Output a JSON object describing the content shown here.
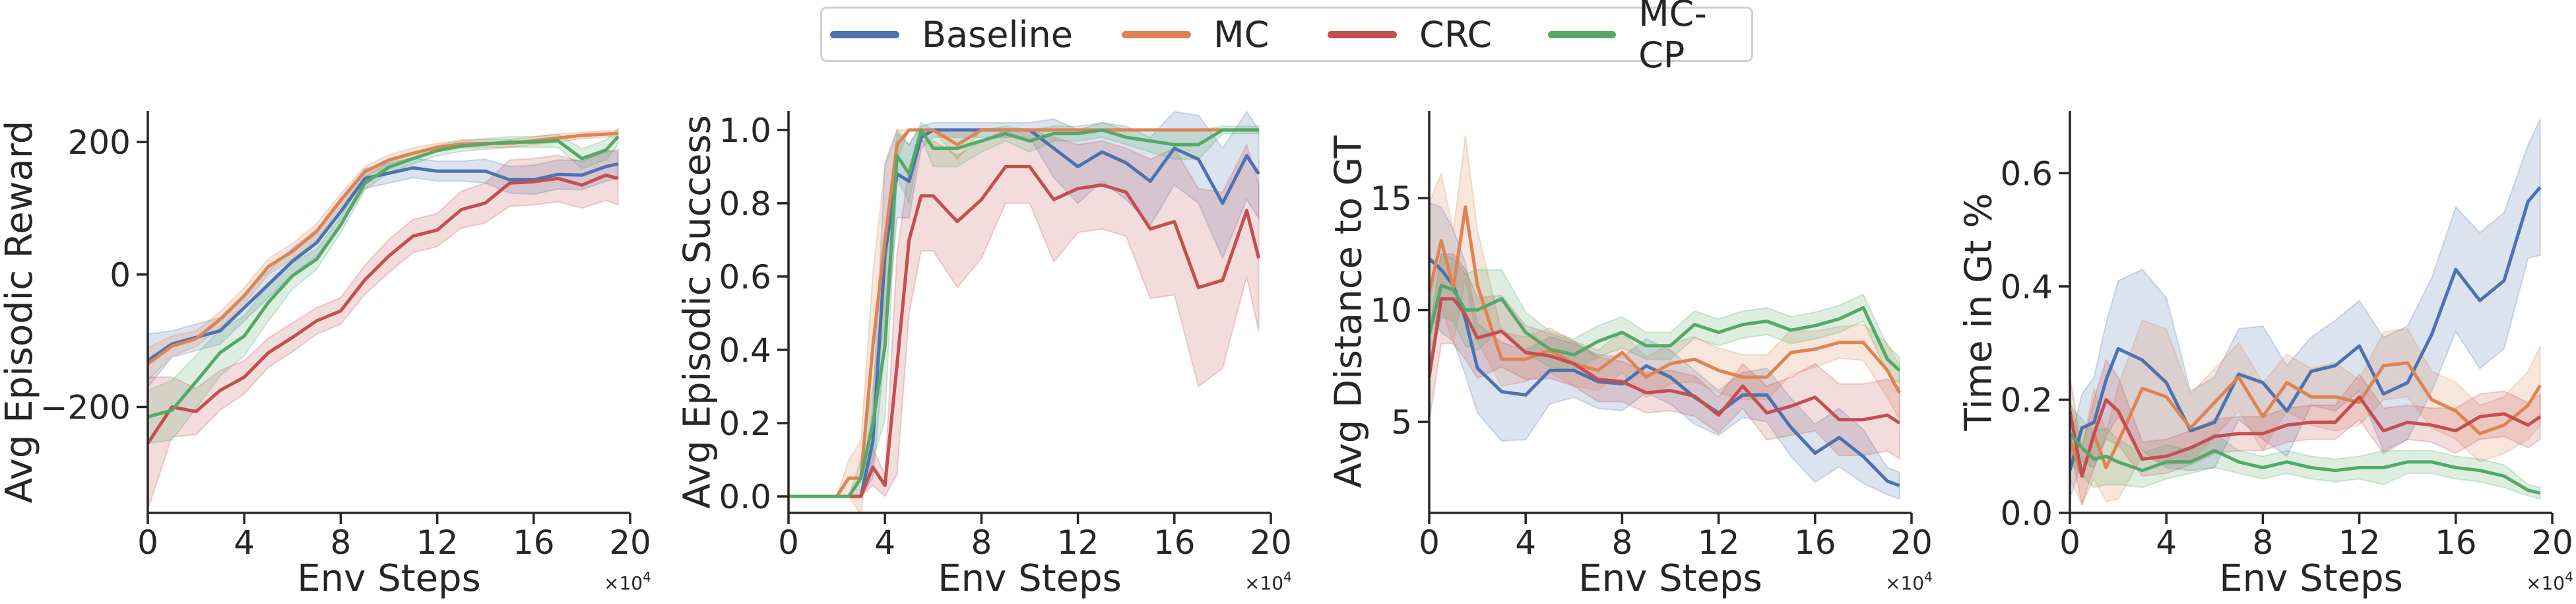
{
  "legend": {
    "placement": "top-center",
    "entries": [
      {
        "name": "Baseline",
        "color": "#4c72b0"
      },
      {
        "name": "MC",
        "color": "#dd8452"
      },
      {
        "name": "CRC",
        "color": "#c44e52"
      },
      {
        "name": "MC-CP",
        "color": "#55a868"
      }
    ]
  },
  "chart_data": [
    {
      "type": "line",
      "xlabel": "Env Steps",
      "ylabel": "Avg Episodic Reward",
      "x_multiplier": "×10",
      "x_multiplier_exp": "4",
      "xlim": [
        0,
        20
      ],
      "ylim": [
        -360,
        247
      ],
      "xticks": [
        0,
        4,
        8,
        12,
        16,
        20
      ],
      "xtick_labels": [
        "0",
        "4",
        "8",
        "12",
        "16",
        "20"
      ],
      "yticks": [
        -200,
        0,
        200
      ],
      "ytick_labels": [
        "−200",
        "0",
        "200"
      ],
      "grid": false,
      "x": [
        0,
        1,
        2,
        3,
        4,
        5,
        6,
        7,
        8,
        9,
        10,
        11,
        12,
        13,
        14,
        15,
        16,
        17,
        18,
        19,
        19.5
      ],
      "series": [
        {
          "name": "Baseline",
          "values": [
            -130,
            -105,
            -95,
            -85,
            -50,
            -15,
            20,
            48,
            95,
            145,
            153,
            161,
            156,
            156,
            156,
            143,
            143,
            151,
            150,
            163,
            167
          ],
          "ci": [
            40,
            20,
            20,
            20,
            20,
            20,
            20,
            20,
            20,
            15,
            15,
            15,
            15,
            15,
            18,
            20,
            22,
            22,
            22,
            22,
            22
          ]
        },
        {
          "name": "MC",
          "values": [
            -135,
            -108,
            -97,
            -68,
            -32,
            12,
            35,
            65,
            112,
            155,
            173,
            183,
            192,
            197,
            198,
            198,
            202,
            206,
            210,
            212,
            213
          ],
          "ci": [
            25,
            15,
            12,
            12,
            12,
            12,
            12,
            12,
            10,
            8,
            8,
            8,
            6,
            6,
            6,
            6,
            6,
            6,
            5,
            5,
            5
          ]
        },
        {
          "name": "CRC",
          "values": [
            -255,
            -200,
            -207,
            -175,
            -155,
            -118,
            -95,
            -70,
            -55,
            -8,
            28,
            58,
            67,
            98,
            108,
            138,
            140,
            145,
            135,
            150,
            145
          ],
          "ci": [
            100,
            45,
            35,
            30,
            25,
            22,
            22,
            20,
            20,
            22,
            25,
            25,
            25,
            28,
            30,
            35,
            35,
            35,
            35,
            38,
            40
          ]
        },
        {
          "name": "MC-CP",
          "values": [
            -215,
            -205,
            -162,
            -118,
            -93,
            -42,
            -2,
            23,
            75,
            138,
            162,
            175,
            187,
            194,
            197,
            200,
            200,
            202,
            175,
            188,
            208
          ],
          "ci": [
            40,
            45,
            40,
            35,
            30,
            28,
            20,
            15,
            12,
            10,
            8,
            8,
            8,
            8,
            8,
            8,
            8,
            10,
            15,
            15,
            12
          ]
        }
      ]
    },
    {
      "type": "line",
      "xlabel": "Env Steps",
      "ylabel": "Avg Episodic Success",
      "x_multiplier": "×10",
      "x_multiplier_exp": "4",
      "xlim": [
        0,
        20
      ],
      "ylim": [
        -0.045,
        1.052
      ],
      "xticks": [
        0,
        4,
        8,
        12,
        16,
        20
      ],
      "xtick_labels": [
        "0",
        "4",
        "8",
        "12",
        "16",
        "20"
      ],
      "yticks": [
        0,
        0.2,
        0.4,
        0.6,
        0.8,
        1.0
      ],
      "ytick_labels": [
        "0.0",
        "0.2",
        "0.4",
        "0.6",
        "0.8",
        "1.0"
      ],
      "grid": false,
      "x": [
        0,
        1,
        2,
        2.5,
        3,
        3.5,
        4,
        4.5,
        5,
        5.5,
        6,
        7,
        8,
        9,
        10,
        11,
        12,
        13,
        14,
        15,
        16,
        17,
        18,
        19,
        19.5
      ],
      "series": [
        {
          "name": "Baseline",
          "values": [
            0,
            0,
            0,
            0,
            0,
            0.15,
            0.66,
            0.88,
            0.86,
            0.98,
            1,
            1,
            1,
            1,
            1,
            0.95,
            0.9,
            0.94,
            0.91,
            0.86,
            0.95,
            0.92,
            0.8,
            0.93,
            0.88
          ],
          "ci": [
            0,
            0,
            0,
            0,
            0,
            0.1,
            0.25,
            0.12,
            0.1,
            0.03,
            0.02,
            0.02,
            0.02,
            0.02,
            0.02,
            0.08,
            0.1,
            0.08,
            0.1,
            0.12,
            0.1,
            0.12,
            0.15,
            0.12,
            0.12
          ]
        },
        {
          "name": "MC",
          "values": [
            0,
            0,
            0,
            0.05,
            0.05,
            0.41,
            0.7,
            0.96,
            1,
            1,
            1,
            0.96,
            1,
            1,
            1,
            1,
            1,
            1,
            1,
            1,
            1,
            1,
            1,
            1,
            1
          ],
          "ci": [
            0,
            0,
            0,
            0.05,
            0.1,
            0.2,
            0.2,
            0.04,
            0,
            0,
            0,
            0.04,
            0,
            0,
            0,
            0,
            0,
            0,
            0,
            0,
            0,
            0,
            0,
            0,
            0
          ]
        },
        {
          "name": "CRC",
          "values": [
            0,
            0,
            0,
            0,
            0,
            0.08,
            0.03,
            0.36,
            0.7,
            0.82,
            0.82,
            0.75,
            0.81,
            0.9,
            0.9,
            0.81,
            0.84,
            0.85,
            0.83,
            0.73,
            0.75,
            0.57,
            0.59,
            0.78,
            0.65
          ],
          "ci": [
            0,
            0,
            0,
            0,
            0,
            0.05,
            0.03,
            0.3,
            0.2,
            0.15,
            0.15,
            0.18,
            0.16,
            0.1,
            0.1,
            0.17,
            0.12,
            0.12,
            0.12,
            0.19,
            0.2,
            0.27,
            0.24,
            0.18,
            0.2
          ]
        },
        {
          "name": "MC-CP",
          "values": [
            0,
            0,
            0,
            0,
            0.05,
            0.2,
            0.41,
            0.93,
            0.88,
            1.0,
            0.95,
            0.95,
            0.97,
            0.99,
            0.97,
            0.99,
            0.99,
            1.0,
            0.98,
            0.97,
            0.96,
            0.96,
            1.0,
            1.0,
            1.0
          ],
          "ci": [
            0,
            0,
            0,
            0,
            0.05,
            0.1,
            0.2,
            0.06,
            0.08,
            0.02,
            0.05,
            0.05,
            0.03,
            0.02,
            0.03,
            0.02,
            0.02,
            0.02,
            0.02,
            0.03,
            0.04,
            0.04,
            0.01,
            0.01,
            0.01
          ]
        }
      ]
    },
    {
      "type": "line",
      "xlabel": "Env Steps",
      "ylabel": "Avg Distance to GT",
      "x_multiplier": "×10",
      "x_multiplier_exp": "4",
      "xlim": [
        0,
        20
      ],
      "ylim": [
        0.93,
        18.9
      ],
      "xticks": [
        0,
        4,
        8,
        12,
        16,
        20
      ],
      "xtick_labels": [
        "0",
        "4",
        "8",
        "12",
        "16",
        "20"
      ],
      "yticks": [
        5,
        10,
        15
      ],
      "ytick_labels": [
        "5",
        "10",
        "15"
      ],
      "grid": false,
      "x": [
        0,
        0.5,
        1,
        1.5,
        2,
        3,
        4,
        5,
        6,
        7,
        8,
        9,
        10,
        11,
        12,
        13,
        14,
        15,
        16,
        17,
        18,
        19,
        19.5
      ],
      "series": [
        {
          "name": "Baseline",
          "values": [
            12.3,
            11.8,
            11.1,
            9.6,
            7.4,
            6.35,
            6.2,
            7.3,
            7.3,
            6.8,
            6.7,
            7.5,
            7.0,
            6.1,
            5.4,
            6.2,
            6.2,
            4.75,
            3.6,
            4.3,
            3.45,
            2.35,
            2.15
          ],
          "ci": [
            2.5,
            2.8,
            2.5,
            2.5,
            2.0,
            2.2,
            2.0,
            1.5,
            1.2,
            1.2,
            1.2,
            1.2,
            1.2,
            1.2,
            1.0,
            1.0,
            1.2,
            1.3,
            1.3,
            1.3,
            1.2,
            0.6,
            0.6
          ]
        },
        {
          "name": "MC",
          "values": [
            10.8,
            13.1,
            11.0,
            14.6,
            11.1,
            7.8,
            7.8,
            8.2,
            7.6,
            7.3,
            8.1,
            7.0,
            7.6,
            7.8,
            7.3,
            7.0,
            7.0,
            8.1,
            8.25,
            8.55,
            8.55,
            7.3,
            6.3
          ],
          "ci": [
            4,
            3,
            2.5,
            3.2,
            2.5,
            1.2,
            1,
            1,
            1,
            0.9,
            0.9,
            0.9,
            0.9,
            1,
            1,
            1,
            1,
            1,
            0.8,
            0.7,
            0.8,
            1.2,
            1.2
          ]
        },
        {
          "name": "CRC",
          "values": [
            7.0,
            10.5,
            10.5,
            9.8,
            8.75,
            9.05,
            8.1,
            7.95,
            7.6,
            6.9,
            6.8,
            6.3,
            6.4,
            6.15,
            5.3,
            6.6,
            5.4,
            5.7,
            6.1,
            5.1,
            5.1,
            5.3,
            4.95
          ],
          "ci": [
            2,
            2,
            2,
            2,
            1.8,
            1.6,
            1.2,
            1,
            1,
            1,
            0.9,
            0.9,
            0.9,
            0.9,
            0.8,
            1,
            1.2,
            1.3,
            1.5,
            1.6,
            1.6,
            1.6,
            1.6
          ]
        },
        {
          "name": "MC-CP",
          "values": [
            8.9,
            11.1,
            10.9,
            10.0,
            10.0,
            10.5,
            9.0,
            8.25,
            8.0,
            8.6,
            9.0,
            8.4,
            8.4,
            9.35,
            9.0,
            9.35,
            9.5,
            9.1,
            9.3,
            9.6,
            10.1,
            7.8,
            7.3
          ],
          "ci": [
            1.5,
            1.4,
            1.4,
            1.6,
            1.8,
            1.3,
            0.9,
            0.8,
            0.7,
            0.7,
            0.7,
            0.6,
            0.6,
            0.6,
            0.6,
            0.6,
            0.6,
            0.6,
            0.6,
            0.6,
            0.6,
            0.6,
            0.6
          ]
        }
      ]
    },
    {
      "type": "line",
      "xlabel": "Env Steps",
      "ylabel": "Time in Gt %",
      "x_multiplier": "×10",
      "x_multiplier_exp": "4",
      "xlim": [
        0,
        20
      ],
      "ylim": [
        0,
        0.71
      ],
      "xticks": [
        0,
        4,
        8,
        12,
        16,
        20
      ],
      "xtick_labels": [
        "0",
        "4",
        "8",
        "12",
        "16",
        "20"
      ],
      "yticks": [
        0,
        0.2,
        0.4,
        0.6
      ],
      "ytick_labels": [
        "0.0",
        "0.2",
        "0.4",
        "0.6"
      ],
      "grid": false,
      "x": [
        0,
        0.5,
        1,
        1.5,
        2,
        3,
        4,
        5,
        6,
        7,
        8,
        9,
        10,
        11,
        12,
        13,
        14,
        15,
        16,
        17,
        18,
        19,
        19.5
      ],
      "series": [
        {
          "name": "Baseline",
          "values": [
            0.075,
            0.15,
            0.16,
            0.235,
            0.29,
            0.27,
            0.23,
            0.145,
            0.16,
            0.245,
            0.23,
            0.18,
            0.25,
            0.26,
            0.295,
            0.21,
            0.23,
            0.315,
            0.43,
            0.375,
            0.41,
            0.55,
            0.575
          ],
          "ci": [
            0.05,
            0.06,
            0.08,
            0.1,
            0.12,
            0.16,
            0.15,
            0.07,
            0.08,
            0.08,
            0.1,
            0.08,
            0.06,
            0.08,
            0.08,
            0.1,
            0.1,
            0.1,
            0.11,
            0.12,
            0.12,
            0.1,
            0.12
          ]
        },
        {
          "name": "MC",
          "values": [
            0.13,
            0.065,
            0.14,
            0.08,
            0.125,
            0.22,
            0.205,
            0.15,
            0.195,
            0.24,
            0.17,
            0.23,
            0.205,
            0.205,
            0.195,
            0.26,
            0.265,
            0.2,
            0.18,
            0.14,
            0.155,
            0.19,
            0.225
          ],
          "ci": [
            0.07,
            0.05,
            0.08,
            0.06,
            0.1,
            0.12,
            0.12,
            0.06,
            0.06,
            0.06,
            0.06,
            0.05,
            0.05,
            0.06,
            0.04,
            0.06,
            0.06,
            0.05,
            0.05,
            0.05,
            0.05,
            0.06,
            0.07
          ]
        },
        {
          "name": "CRC",
          "values": [
            0.18,
            0.065,
            0.14,
            0.2,
            0.18,
            0.095,
            0.1,
            0.115,
            0.135,
            0.14,
            0.14,
            0.155,
            0.16,
            0.16,
            0.205,
            0.145,
            0.16,
            0.155,
            0.145,
            0.17,
            0.175,
            0.155,
            0.17
          ],
          "ci": [
            0.06,
            0.05,
            0.06,
            0.07,
            0.06,
            0.03,
            0.03,
            0.03,
            0.03,
            0.03,
            0.03,
            0.03,
            0.03,
            0.03,
            0.04,
            0.04,
            0.03,
            0.03,
            0.04,
            0.04,
            0.04,
            0.04,
            0.04
          ]
        },
        {
          "name": "MC-CP",
          "values": [
            0.14,
            0.115,
            0.095,
            0.1,
            0.09,
            0.075,
            0.09,
            0.09,
            0.11,
            0.09,
            0.08,
            0.09,
            0.08,
            0.075,
            0.08,
            0.08,
            0.09,
            0.09,
            0.08,
            0.075,
            0.065,
            0.04,
            0.035
          ],
          "ci": [
            0.05,
            0.05,
            0.05,
            0.05,
            0.04,
            0.03,
            0.03,
            0.02,
            0.03,
            0.02,
            0.02,
            0.02,
            0.02,
            0.02,
            0.02,
            0.03,
            0.02,
            0.02,
            0.02,
            0.02,
            0.02,
            0.01,
            0.01
          ]
        }
      ]
    }
  ]
}
